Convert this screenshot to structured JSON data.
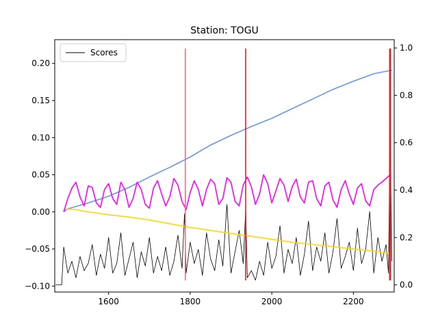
{
  "chart_data": {
    "type": "line",
    "title": "Station: TOGU",
    "xlabel": "",
    "ylabel": "",
    "xlim": [
      1468,
      2300
    ],
    "ylim_left": [
      -0.108,
      0.232
    ],
    "ylim_right": [
      -0.03,
      1.035
    ],
    "x_ticks": [
      1600,
      1800,
      2000,
      2200
    ],
    "y_left_ticks": [
      -0.1,
      -0.05,
      0.0,
      0.05,
      0.1,
      0.15,
      0.2
    ],
    "y_right_ticks": [
      0.0,
      0.2,
      0.4,
      0.6,
      0.8,
      1.0
    ],
    "grid": false,
    "legend": {
      "location": "upper-left",
      "entries": [
        "Scores"
      ]
    },
    "vertical_lines": [
      {
        "x": 1788,
        "y_top": 0.22,
        "color": "#ff6a6a"
      },
      {
        "x": 1936,
        "y_top": 0.22,
        "color": "#e02020"
      },
      {
        "x": 2289,
        "y_top": 0.22,
        "color": "#e02020"
      },
      {
        "x": 2291,
        "y_top": 0.22,
        "color": "#e02020"
      }
    ],
    "series": [
      {
        "name": "Scores",
        "axis": "right",
        "color": "#000000",
        "x": [
          1470,
          1485,
          1490,
          1500,
          1510,
          1520,
          1530,
          1540,
          1550,
          1560,
          1570,
          1580,
          1590,
          1600,
          1610,
          1620,
          1630,
          1640,
          1650,
          1660,
          1670,
          1680,
          1690,
          1700,
          1710,
          1720,
          1730,
          1740,
          1750,
          1760,
          1770,
          1780,
          1786,
          1790,
          1800,
          1810,
          1820,
          1830,
          1840,
          1850,
          1860,
          1870,
          1880,
          1890,
          1900,
          1910,
          1920,
          1930,
          1936,
          1940,
          1950,
          1960,
          1970,
          1980,
          1990,
          2000,
          2010,
          2020,
          2030,
          2040,
          2050,
          2060,
          2070,
          2080,
          2090,
          2100,
          2110,
          2120,
          2130,
          2140,
          2150,
          2160,
          2170,
          2180,
          2190,
          2200,
          2210,
          2220,
          2230,
          2240,
          2250,
          2260,
          2270,
          2280,
          2286,
          2288,
          2290,
          2292,
          2294
        ],
        "values": [
          0.0,
          0.0,
          0.16,
          0.05,
          0.1,
          0.03,
          0.12,
          0.06,
          0.09,
          0.17,
          0.04,
          0.13,
          0.07,
          0.2,
          0.05,
          0.09,
          0.22,
          0.04,
          0.11,
          0.18,
          0.03,
          0.14,
          0.08,
          0.2,
          0.05,
          0.12,
          0.06,
          0.16,
          0.04,
          0.1,
          0.21,
          0.07,
          0.3,
          0.05,
          0.18,
          0.09,
          0.15,
          0.04,
          0.22,
          0.11,
          0.06,
          0.19,
          0.08,
          0.34,
          0.05,
          0.14,
          0.23,
          0.09,
          0.32,
          0.03,
          0.06,
          0.02,
          0.1,
          0.04,
          0.18,
          0.07,
          0.12,
          0.25,
          0.05,
          0.15,
          0.09,
          0.2,
          0.04,
          0.13,
          0.27,
          0.06,
          0.16,
          0.1,
          0.22,
          0.05,
          0.14,
          0.28,
          0.07,
          0.12,
          0.18,
          0.06,
          0.24,
          0.09,
          0.15,
          0.31,
          0.05,
          0.2,
          0.1,
          0.17,
          0.05,
          0.35,
          0.98,
          0.4,
          0.1
        ]
      },
      {
        "name": "",
        "axis": "left",
        "color": "#6495ed",
        "x": [
          1490,
          1500,
          1550,
          1600,
          1650,
          1700,
          1750,
          1800,
          1850,
          1900,
          1950,
          2000,
          2050,
          2100,
          2150,
          2200,
          2250,
          2295
        ],
        "values": [
          0.0,
          0.004,
          0.012,
          0.021,
          0.033,
          0.047,
          0.06,
          0.074,
          0.09,
          0.103,
          0.115,
          0.126,
          0.139,
          0.152,
          0.165,
          0.176,
          0.186,
          0.191
        ]
      },
      {
        "name": "",
        "axis": "left",
        "color": "#ffd700",
        "x": [
          1490,
          1520,
          1550,
          1600,
          1650,
          1700,
          1750,
          1800,
          1850,
          1900,
          1950,
          2000,
          2050,
          2100,
          2150,
          2200,
          2250,
          2290
        ],
        "values": [
          0.004,
          0.003,
          0.0,
          -0.004,
          -0.007,
          -0.011,
          -0.016,
          -0.021,
          -0.025,
          -0.029,
          -0.033,
          -0.037,
          -0.041,
          -0.044,
          -0.047,
          -0.05,
          -0.053,
          -0.056
        ]
      },
      {
        "name": "",
        "axis": "left",
        "color": "#ff00ff",
        "x": [
          1490,
          1500,
          1510,
          1520,
          1530,
          1540,
          1550,
          1560,
          1570,
          1580,
          1590,
          1600,
          1610,
          1620,
          1630,
          1640,
          1650,
          1660,
          1670,
          1680,
          1690,
          1700,
          1710,
          1720,
          1730,
          1740,
          1750,
          1760,
          1770,
          1780,
          1790,
          1800,
          1810,
          1820,
          1830,
          1840,
          1850,
          1860,
          1870,
          1880,
          1890,
          1900,
          1910,
          1920,
          1930,
          1940,
          1950,
          1960,
          1970,
          1980,
          1990,
          2000,
          2010,
          2020,
          2030,
          2040,
          2050,
          2060,
          2070,
          2080,
          2090,
          2100,
          2110,
          2120,
          2130,
          2140,
          2150,
          2160,
          2170,
          2180,
          2190,
          2200,
          2210,
          2220,
          2230,
          2240,
          2250,
          2260,
          2270,
          2280,
          2290
        ],
        "values": [
          0.0,
          0.018,
          0.032,
          0.04,
          0.02,
          0.008,
          0.035,
          0.033,
          0.012,
          0.006,
          0.03,
          0.038,
          0.018,
          0.01,
          0.04,
          0.03,
          0.006,
          0.018,
          0.04,
          0.03,
          0.01,
          0.005,
          0.032,
          0.042,
          0.024,
          0.008,
          0.02,
          0.045,
          0.036,
          0.014,
          0.003,
          0.026,
          0.042,
          0.03,
          0.008,
          0.03,
          0.044,
          0.038,
          0.01,
          0.018,
          0.046,
          0.04,
          0.014,
          0.008,
          0.036,
          0.047,
          0.034,
          0.01,
          0.024,
          0.05,
          0.038,
          0.012,
          0.028,
          0.045,
          0.036,
          0.014,
          0.034,
          0.044,
          0.02,
          0.012,
          0.04,
          0.042,
          0.018,
          0.008,
          0.035,
          0.04,
          0.016,
          0.006,
          0.03,
          0.042,
          0.024,
          0.01,
          0.032,
          0.038,
          0.015,
          0.008,
          0.03,
          0.036,
          0.04,
          0.045,
          0.05
        ]
      }
    ]
  }
}
